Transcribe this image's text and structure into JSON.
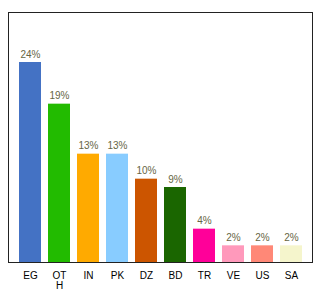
{
  "chart_data": {
    "type": "bar",
    "categories": [
      "EG",
      "OT\nH",
      "IN",
      "PK",
      "DZ",
      "BD",
      "TR",
      "VE",
      "US",
      "SA"
    ],
    "values": [
      24,
      19,
      13,
      13,
      10,
      9,
      4,
      2,
      2,
      2
    ],
    "value_labels": [
      "24%",
      "19%",
      "13%",
      "13%",
      "10%",
      "9%",
      "4%",
      "2%",
      "2%",
      "2%"
    ],
    "colors": [
      "#4472c4",
      "#22bb00",
      "#ffaa00",
      "#88ccff",
      "#cc5500",
      "#1a6600",
      "#ff0099",
      "#ff99bb",
      "#ff8877",
      "#f5f5cc"
    ],
    "ylim": [
      0,
      30
    ],
    "data_labels": true,
    "tick_labels": "x",
    "grid": false
  }
}
